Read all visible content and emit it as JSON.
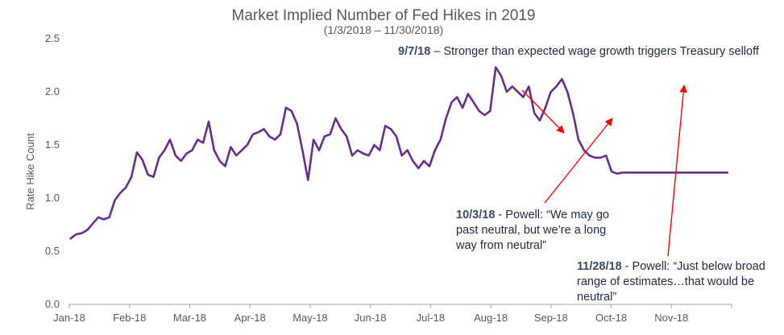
{
  "chart_data": {
    "type": "line",
    "title": "Market Implied Number of Fed Hikes in 2019",
    "subtitle": "(1/3/2018 – 11/30/2018)",
    "xlabel": "",
    "ylabel": "Rate Hike Count",
    "ylim": [
      0,
      2.5
    ],
    "yticks": [
      "0.0",
      "0.5",
      "1.0",
      "1.5",
      "2.0",
      "2.5"
    ],
    "xticks": [
      "Jan-18",
      "Feb-18",
      "Mar-18",
      "Apr-18",
      "May-18",
      "Jun-18",
      "Jul-18",
      "Aug-18",
      "Sep-18",
      "Oct-18",
      "Nov-18"
    ],
    "series": [
      {
        "name": "Market Implied Number of Fed Hikes in 2019",
        "color": "#6a2c91",
        "x": [
          0.1,
          0.5,
          0.9,
          1.3,
          1.7,
          2.1,
          2.5,
          2.9,
          3.3,
          3.7,
          4.1,
          4.5,
          4.9,
          5.3,
          5.7,
          6.1,
          6.5,
          6.9,
          7.3,
          7.7,
          8.1,
          8.5,
          8.9,
          9.3,
          9.7,
          10.1,
          10.5,
          10.9,
          11.3,
          11.7,
          12.1,
          12.5,
          12.9,
          13.3,
          13.7,
          14.1,
          14.5,
          14.9,
          15.3,
          15.7,
          16.1,
          16.5,
          16.9,
          17.3,
          17.7,
          18.1,
          18.5,
          18.9,
          19.3,
          19.7,
          20.1,
          20.5,
          20.9,
          21.3,
          21.7,
          22.1,
          22.5,
          22.9,
          23.3,
          23.7,
          24.1,
          24.5,
          24.9,
          25.3,
          25.7,
          26.1,
          26.5,
          26.9,
          27.3,
          27.7,
          28.1,
          28.5,
          28.9,
          29.3,
          29.7,
          30.1,
          30.5,
          30.9,
          31.3,
          31.7,
          32.1,
          32.5,
          32.9,
          33.3,
          33.7,
          34.1,
          34.5,
          34.9,
          35.3,
          35.7,
          36.1,
          36.5,
          36.9,
          37.3,
          37.7,
          38.1,
          38.5,
          38.9,
          39.3,
          39.7,
          40.1,
          40.5,
          40.9,
          41.3,
          41.7,
          42.1,
          42.5,
          42.9,
          43.3,
          43.7,
          44.1,
          44.5,
          44.9,
          45.3,
          45.7,
          46.1,
          46.5,
          46.9,
          47.3,
          47.7
        ],
        "values": [
          0.62,
          0.66,
          0.67,
          0.7,
          0.76,
          0.82,
          0.8,
          0.82,
          0.98,
          1.05,
          1.1,
          1.2,
          1.43,
          1.36,
          1.22,
          1.2,
          1.38,
          1.45,
          1.55,
          1.4,
          1.35,
          1.42,
          1.45,
          1.55,
          1.52,
          1.72,
          1.45,
          1.35,
          1.3,
          1.48,
          1.4,
          1.45,
          1.5,
          1.6,
          1.62,
          1.65,
          1.58,
          1.55,
          1.6,
          1.85,
          1.82,
          1.7,
          1.45,
          1.17,
          1.55,
          1.45,
          1.58,
          1.6,
          1.75,
          1.65,
          1.58,
          1.4,
          1.45,
          1.42,
          1.4,
          1.5,
          1.45,
          1.68,
          1.65,
          1.58,
          1.4,
          1.45,
          1.35,
          1.28,
          1.35,
          1.3,
          1.45,
          1.55,
          1.75,
          1.9,
          1.95,
          1.85,
          1.98,
          1.9,
          1.82,
          1.78,
          1.82,
          2.23,
          2.15,
          2.0,
          2.05,
          2.0,
          1.95,
          2.05,
          1.8,
          1.73,
          1.85,
          2.0,
          2.05,
          2.12,
          2.0,
          1.8,
          1.55,
          1.45,
          1.4,
          1.38,
          1.38,
          1.4,
          1.25,
          1.23,
          1.24,
          1.24,
          1.24,
          1.24,
          1.24,
          1.24,
          1.24,
          1.24,
          1.24,
          1.24,
          1.24,
          1.24,
          1.24,
          1.24,
          1.24,
          1.24,
          1.24,
          1.24,
          1.24,
          1.24
        ]
      }
    ],
    "annotations": [
      {
        "bold": "9/7/18",
        "text": " – Stronger than expected wage growth triggers Treasury selloff",
        "lines": [
          "9/7/18 – Stronger than",
          "expected wage growth",
          "triggers Treasury selloff"
        ]
      },
      {
        "bold": "10/3/18",
        "text": " - Powell: “We may go past neutral, but we’re a long way from neutral”",
        "lines": [
          "10/3/18 - Powell: “We may",
          "go past neutral, but we’re",
          "a long way from neutral”"
        ]
      },
      {
        "bold": "11/28/18",
        "text": " - Powell: “Just below broad range of estimates…that would be neutral”",
        "lines": [
          "11/28/18 - Powell: “Just below",
          "broad range of estimates…that",
          "would be neutral”"
        ]
      }
    ],
    "arrow_color": "#ff0000"
  }
}
